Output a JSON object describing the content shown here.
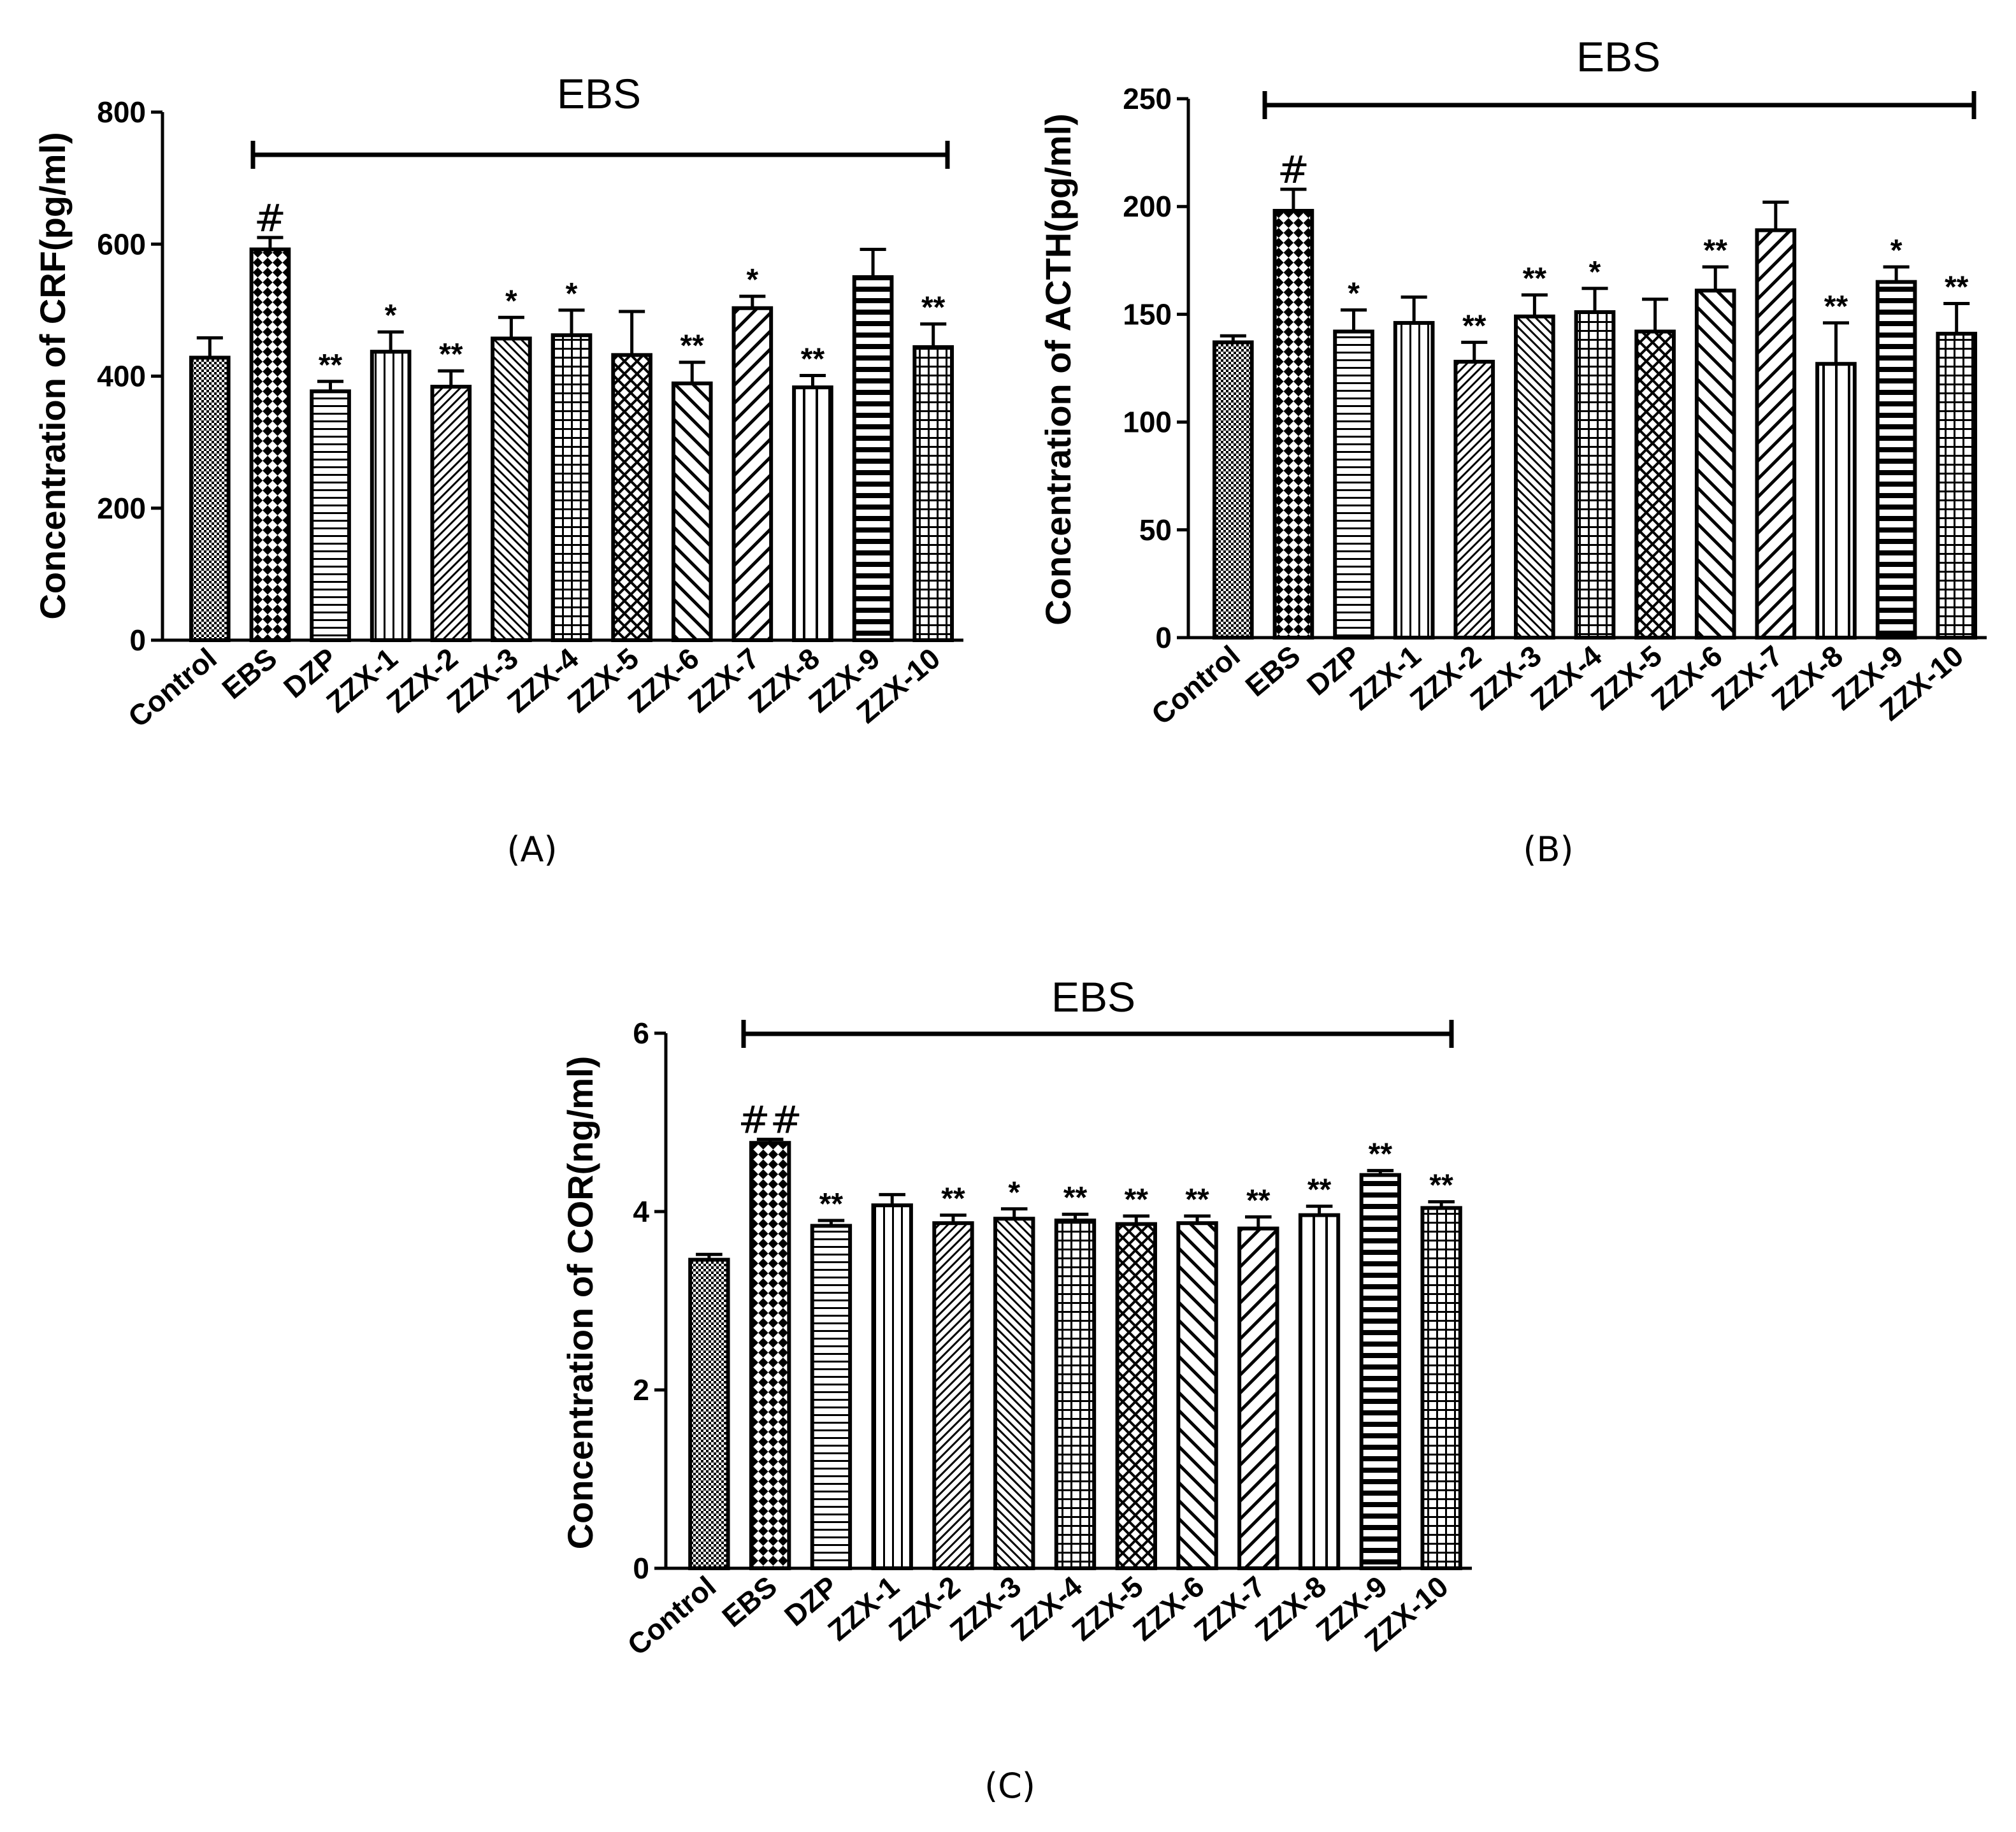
{
  "categories": [
    "Control",
    "EBS",
    "DZP",
    "ZZX-1",
    "ZZX-2",
    "ZZX-3",
    "ZZX-4",
    "ZZX-5",
    "ZZX-6",
    "ZZX-7",
    "ZZX-8",
    "ZZX-9",
    "ZZX-10"
  ],
  "patterns": [
    "fine-check",
    "check",
    "hlines",
    "vlines",
    "diag-fine",
    "diag-back-fine",
    "grid",
    "diag-cross",
    "diag-back",
    "diag",
    "vlines-wide",
    "hlines-thick",
    "grid"
  ],
  "colors": {
    "ink": "#000000",
    "background": "#ffffff"
  },
  "chart_data": [
    {
      "type": "bar",
      "panel": "(A)",
      "title": "",
      "xlabel": "",
      "ylabel": "Concentration of CRF(pg/ml)",
      "ylim": [
        0,
        800
      ],
      "yticks": [
        0,
        200,
        400,
        600,
        800
      ],
      "ytick_labels": [
        "0",
        "200",
        "400",
        "600",
        "800"
      ],
      "bracket_label": "EBS",
      "bracket_span": [
        "EBS",
        "ZZX-10"
      ],
      "series": [
        {
          "name": "CRF",
          "values": [
            428,
            592,
            377,
            437,
            384,
            457,
            462,
            432,
            389,
            503,
            383,
            550,
            444
          ],
          "errors": [
            30,
            18,
            15,
            30,
            24,
            32,
            38,
            66,
            32,
            18,
            18,
            42,
            35
          ],
          "marks": [
            "",
            "#",
            "**",
            "*",
            "**",
            "*",
            "*",
            "",
            "**",
            "*",
            "**",
            "",
            "**"
          ]
        }
      ]
    },
    {
      "type": "bar",
      "panel": "(B)",
      "title": "",
      "xlabel": "",
      "ylabel": "Concentration of ACTH(pg/ml)",
      "ylim": [
        0,
        250
      ],
      "yticks": [
        0,
        50,
        100,
        150,
        200,
        250
      ],
      "ytick_labels": [
        "0",
        "50",
        "100",
        "150",
        "200",
        "250"
      ],
      "bracket_label": "EBS",
      "bracket_span": [
        "EBS",
        "ZZX-10"
      ],
      "series": [
        {
          "name": "ACTH",
          "values": [
            137,
            198,
            142,
            146,
            128,
            149,
            151,
            142,
            161,
            189,
            127,
            165,
            141
          ],
          "errors": [
            3,
            10,
            10,
            12,
            9,
            10,
            11,
            15,
            11,
            13,
            19,
            7,
            14
          ],
          "marks": [
            "",
            "#",
            "*",
            "",
            "**",
            "**",
            "*",
            "",
            "**",
            "",
            "**",
            "*",
            "**"
          ]
        }
      ]
    },
    {
      "type": "bar",
      "panel": "(C)",
      "title": "",
      "xlabel": "",
      "ylabel": "Concentration of COR(ng/ml)",
      "ylim": [
        0,
        6
      ],
      "yticks": [
        0,
        2,
        4,
        6
      ],
      "ytick_labels": [
        "0",
        "2",
        "4",
        "6"
      ],
      "bracket_label": "EBS",
      "bracket_span": [
        "EBS",
        "ZZX-10"
      ],
      "series": [
        {
          "name": "COR",
          "values": [
            3.46,
            4.77,
            3.84,
            4.07,
            3.87,
            3.92,
            3.9,
            3.86,
            3.87,
            3.81,
            3.96,
            4.41,
            4.04
          ],
          "errors": [
            0.06,
            0.04,
            0.06,
            0.12,
            0.09,
            0.11,
            0.07,
            0.09,
            0.08,
            0.13,
            0.1,
            0.05,
            0.07
          ],
          "marks": [
            "",
            "##",
            "**",
            "",
            "**",
            "*",
            "**",
            "**",
            "**",
            "**",
            "**",
            "**",
            "**"
          ]
        }
      ]
    }
  ]
}
